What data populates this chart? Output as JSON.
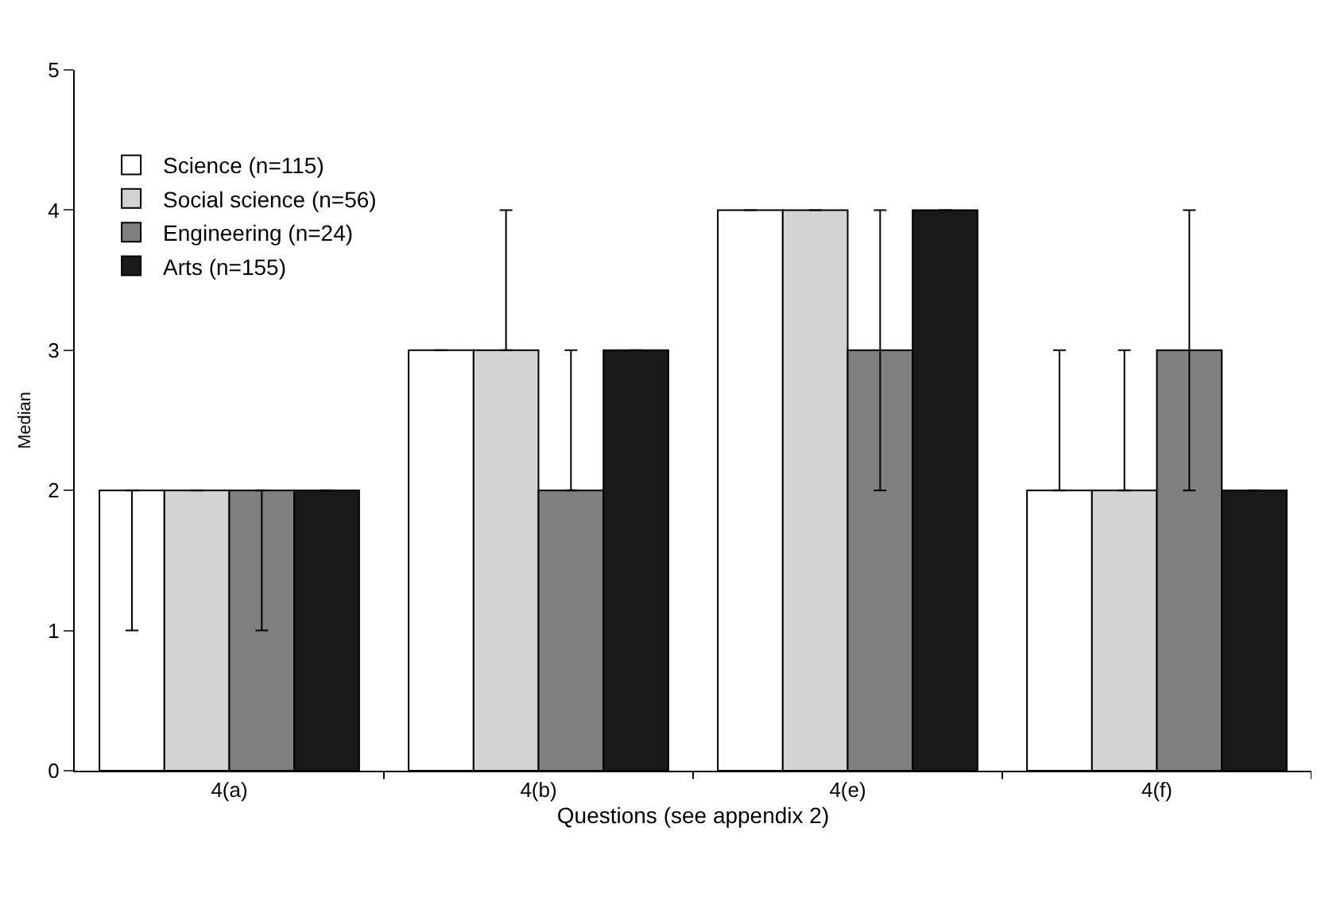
{
  "chart_data": {
    "type": "bar",
    "xlabel": "Questions (see appendix 2)",
    "ylabel": "Median",
    "categories": [
      "4(a)",
      "4(b)",
      "4(e)",
      "4(f)"
    ],
    "series": [
      {
        "name": "Science (n=115)",
        "color": "#ffffff",
        "values": [
          2,
          3,
          4,
          2
        ],
        "errors": [
          [
            1,
            2
          ],
          [
            3,
            3
          ],
          [
            4,
            4
          ],
          [
            2,
            3
          ]
        ]
      },
      {
        "name": "Social science (n=56)",
        "color": "#d3d3d3",
        "values": [
          2,
          3,
          4,
          2
        ],
        "errors": [
          [
            2,
            2
          ],
          [
            3,
            4
          ],
          [
            4,
            4
          ],
          [
            2,
            3
          ]
        ]
      },
      {
        "name": "Engineering (n=24)",
        "color": "#808080",
        "values": [
          2,
          2,
          3,
          3
        ],
        "errors": [
          [
            1,
            2
          ],
          [
            2,
            3
          ],
          [
            2,
            4
          ],
          [
            2,
            4
          ]
        ]
      },
      {
        "name": "Arts (n=155)",
        "color": "#1a1a1a",
        "values": [
          2,
          3,
          4,
          2
        ],
        "errors": [
          [
            2,
            2
          ],
          [
            3,
            3
          ],
          [
            4,
            4
          ],
          [
            2,
            2
          ]
        ]
      }
    ],
    "ylim": [
      0,
      5
    ],
    "yticks": [
      0,
      1,
      2,
      3,
      4,
      5
    ],
    "grid": false,
    "legend": "top left"
  }
}
